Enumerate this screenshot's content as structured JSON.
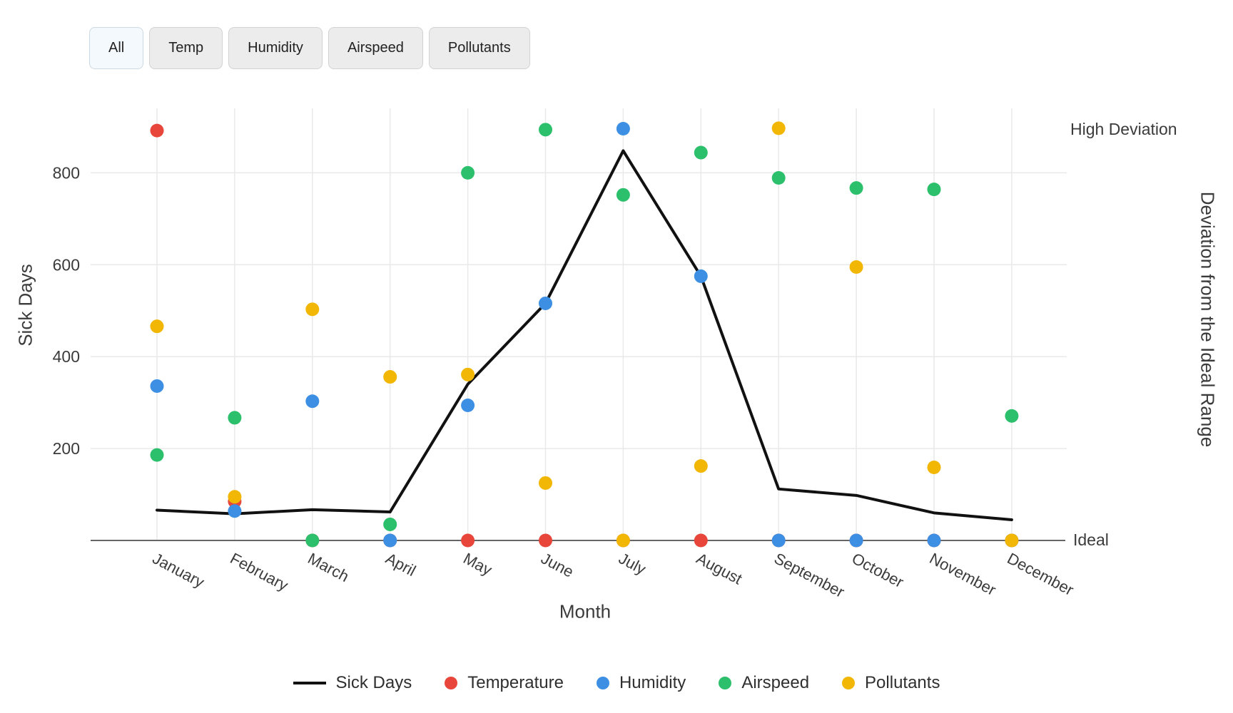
{
  "toolbar": {
    "buttons": [
      {
        "label": "All",
        "active": true
      },
      {
        "label": "Temp",
        "active": false
      },
      {
        "label": "Humidity",
        "active": false
      },
      {
        "label": "Airspeed",
        "active": false
      },
      {
        "label": "Pollutants",
        "active": false
      }
    ]
  },
  "chart_data": {
    "type": "line+scatter",
    "categories": [
      "January",
      "February",
      "March",
      "April",
      "May",
      "June",
      "July",
      "August",
      "September",
      "October",
      "November",
      "December"
    ],
    "series": [
      {
        "name": "Sick Days",
        "type": "line",
        "color": "#111111",
        "values": [
          66,
          58,
          67,
          62,
          340,
          516,
          848,
          575,
          112,
          98,
          60,
          45
        ]
      },
      {
        "name": "Temperature",
        "type": "scatter",
        "color": "#e8463a",
        "values": [
          892,
          85,
          0,
          0,
          0,
          0,
          0,
          0,
          0,
          0,
          0,
          0
        ]
      },
      {
        "name": "Humidity",
        "type": "scatter",
        "color": "#3d8fe4",
        "values": [
          336,
          64,
          303,
          0,
          294,
          516,
          896,
          575,
          0,
          0,
          0,
          0
        ]
      },
      {
        "name": "Airspeed",
        "type": "scatter",
        "color": "#2cc06c",
        "values": [
          186,
          267,
          0,
          35,
          800,
          894,
          752,
          844,
          789,
          767,
          764,
          271
        ]
      },
      {
        "name": "Pollutants",
        "type": "scatter",
        "color": "#f2b705",
        "values": [
          466,
          95,
          503,
          356,
          361,
          125,
          0,
          162,
          897,
          595,
          159,
          0
        ]
      }
    ],
    "xlabel": "Month",
    "ylabel_left": "Sick Days",
    "ylabel_right": "Deviation from the Ideal Range",
    "yticks": [
      200,
      400,
      600,
      800
    ],
    "right_axis_labels": {
      "top": "High Deviation",
      "zero": "Ideal"
    },
    "ylim": [
      0,
      940
    ],
    "grid": true,
    "legend_position": "bottom"
  }
}
